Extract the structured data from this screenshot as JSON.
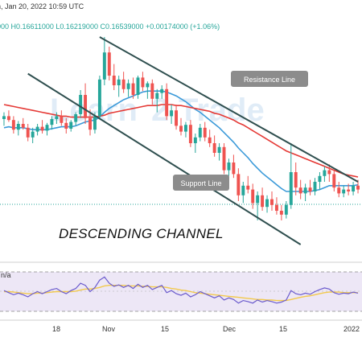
{
  "header": {
    "date": "n, Jan 20, 2022 10:59 UTC",
    "ohlc": "000  H0.16611000  L0.16219000  C0.16539000  +0.00174000 (+1.06%)"
  },
  "watermark": {
    "left": "Learn",
    "mid": "2",
    "right": "Trade"
  },
  "annotations": {
    "resistance": "Resistance Line",
    "support": "Support Line",
    "title": "DESCENDING CHANNEL"
  },
  "rsi": {
    "label": "n/a"
  },
  "colors": {
    "up": "#26a69a",
    "down": "#ef5350",
    "ma_fast": "#3b9ad9",
    "ma_slow": "#e53935",
    "rsi_line": "#6a5acd",
    "rsi_signal": "#f2c94c",
    "channel": "#2f4f4f",
    "annot_bg": "#8c8c8c",
    "rsi_band": "#ede7f6"
  },
  "chart_data": {
    "type": "line",
    "title": "",
    "x_ticks": [
      "18",
      "Nov",
      "15",
      "Dec",
      "15",
      "2022"
    ],
    "ylim": [
      0.11,
      0.345
    ],
    "candles": [
      [
        0.255,
        0.262,
        0.248,
        0.258
      ],
      [
        0.258,
        0.264,
        0.252,
        0.254
      ],
      [
        0.254,
        0.258,
        0.24,
        0.244
      ],
      [
        0.244,
        0.253,
        0.238,
        0.25
      ],
      [
        0.25,
        0.256,
        0.244,
        0.246
      ],
      [
        0.246,
        0.25,
        0.232,
        0.236
      ],
      [
        0.236,
        0.246,
        0.23,
        0.242
      ],
      [
        0.242,
        0.25,
        0.238,
        0.247
      ],
      [
        0.247,
        0.254,
        0.24,
        0.243
      ],
      [
        0.243,
        0.251,
        0.238,
        0.249
      ],
      [
        0.249,
        0.258,
        0.244,
        0.255
      ],
      [
        0.255,
        0.262,
        0.25,
        0.258
      ],
      [
        0.258,
        0.264,
        0.248,
        0.251
      ],
      [
        0.251,
        0.256,
        0.24,
        0.245
      ],
      [
        0.245,
        0.254,
        0.242,
        0.252
      ],
      [
        0.252,
        0.262,
        0.248,
        0.26
      ],
      [
        0.26,
        0.285,
        0.256,
        0.28
      ],
      [
        0.28,
        0.292,
        0.25,
        0.256
      ],
      [
        0.256,
        0.265,
        0.238,
        0.244
      ],
      [
        0.244,
        0.262,
        0.24,
        0.258
      ],
      [
        0.258,
        0.3,
        0.255,
        0.296
      ],
      [
        0.296,
        0.34,
        0.29,
        0.324
      ],
      [
        0.324,
        0.33,
        0.295,
        0.3
      ],
      [
        0.3,
        0.312,
        0.285,
        0.29
      ],
      [
        0.29,
        0.3,
        0.278,
        0.296
      ],
      [
        0.296,
        0.304,
        0.282,
        0.286
      ],
      [
        0.286,
        0.296,
        0.278,
        0.292
      ],
      [
        0.292,
        0.298,
        0.276,
        0.28
      ],
      [
        0.28,
        0.3,
        0.276,
        0.298
      ],
      [
        0.298,
        0.304,
        0.284,
        0.288
      ],
      [
        0.288,
        0.294,
        0.276,
        0.292
      ],
      [
        0.292,
        0.296,
        0.27,
        0.276
      ],
      [
        0.276,
        0.286,
        0.262,
        0.282
      ],
      [
        0.282,
        0.29,
        0.276,
        0.286
      ],
      [
        0.286,
        0.292,
        0.254,
        0.258
      ],
      [
        0.258,
        0.27,
        0.25,
        0.264
      ],
      [
        0.264,
        0.27,
        0.244,
        0.248
      ],
      [
        0.248,
        0.256,
        0.238,
        0.242
      ],
      [
        0.242,
        0.252,
        0.236,
        0.249
      ],
      [
        0.249,
        0.254,
        0.226,
        0.23
      ],
      [
        0.23,
        0.24,
        0.22,
        0.236
      ],
      [
        0.236,
        0.25,
        0.232,
        0.246
      ],
      [
        0.246,
        0.252,
        0.232,
        0.236
      ],
      [
        0.236,
        0.244,
        0.226,
        0.23
      ],
      [
        0.23,
        0.238,
        0.216,
        0.22
      ],
      [
        0.22,
        0.23,
        0.212,
        0.226
      ],
      [
        0.226,
        0.23,
        0.198,
        0.202
      ],
      [
        0.202,
        0.214,
        0.196,
        0.21
      ],
      [
        0.21,
        0.218,
        0.194,
        0.198
      ],
      [
        0.198,
        0.204,
        0.17,
        0.176
      ],
      [
        0.176,
        0.19,
        0.168,
        0.186
      ],
      [
        0.186,
        0.196,
        0.178,
        0.182
      ],
      [
        0.182,
        0.188,
        0.162,
        0.168
      ],
      [
        0.168,
        0.18,
        0.15,
        0.176
      ],
      [
        0.176,
        0.184,
        0.16,
        0.164
      ],
      [
        0.164,
        0.176,
        0.158,
        0.172
      ],
      [
        0.172,
        0.18,
        0.16,
        0.166
      ],
      [
        0.166,
        0.174,
        0.156,
        0.16
      ],
      [
        0.16,
        0.166,
        0.15,
        0.156
      ],
      [
        0.156,
        0.17,
        0.152,
        0.166
      ],
      [
        0.166,
        0.23,
        0.162,
        0.2
      ],
      [
        0.2,
        0.21,
        0.176,
        0.184
      ],
      [
        0.184,
        0.192,
        0.172,
        0.178
      ],
      [
        0.178,
        0.188,
        0.17,
        0.184
      ],
      [
        0.184,
        0.192,
        0.176,
        0.18
      ],
      [
        0.18,
        0.194,
        0.176,
        0.19
      ],
      [
        0.19,
        0.2,
        0.182,
        0.196
      ],
      [
        0.196,
        0.206,
        0.19,
        0.202
      ],
      [
        0.202,
        0.208,
        0.19,
        0.198
      ],
      [
        0.198,
        0.202,
        0.18,
        0.184
      ],
      [
        0.184,
        0.19,
        0.174,
        0.178
      ],
      [
        0.178,
        0.186,
        0.174,
        0.182
      ],
      [
        0.182,
        0.188,
        0.176,
        0.18
      ],
      [
        0.18,
        0.19,
        0.176,
        0.186
      ],
      [
        0.186,
        0.192,
        0.178,
        0.182
      ]
    ],
    "series": [
      {
        "values": [
          0.246,
          0.247,
          0.246,
          0.246,
          0.246,
          0.245,
          0.244,
          0.244,
          0.244,
          0.244,
          0.245,
          0.246,
          0.247,
          0.247,
          0.247,
          0.248,
          0.25,
          0.252,
          0.253,
          0.254,
          0.257,
          0.262,
          0.266,
          0.269,
          0.272,
          0.275,
          0.277,
          0.279,
          0.281,
          0.283,
          0.284,
          0.284,
          0.284,
          0.284,
          0.283,
          0.281,
          0.279,
          0.276,
          0.273,
          0.269,
          0.265,
          0.262,
          0.258,
          0.254,
          0.25,
          0.246,
          0.241,
          0.236,
          0.231,
          0.225,
          0.22,
          0.215,
          0.209,
          0.204,
          0.199,
          0.195,
          0.191,
          0.187,
          0.183,
          0.18,
          0.18,
          0.18,
          0.18,
          0.18,
          0.18,
          0.181,
          0.182,
          0.184,
          0.186,
          0.186,
          0.186,
          0.186,
          0.186,
          0.186,
          0.187
        ]
      },
      {
        "values": [
          0.27,
          0.269,
          0.268,
          0.267,
          0.266,
          0.265,
          0.264,
          0.263,
          0.262,
          0.261,
          0.26,
          0.259,
          0.258,
          0.258,
          0.257,
          0.257,
          0.257,
          0.257,
          0.257,
          0.257,
          0.258,
          0.259,
          0.261,
          0.262,
          0.263,
          0.264,
          0.265,
          0.266,
          0.267,
          0.268,
          0.269,
          0.269,
          0.269,
          0.27,
          0.27,
          0.27,
          0.269,
          0.269,
          0.268,
          0.267,
          0.266,
          0.265,
          0.264,
          0.263,
          0.261,
          0.26,
          0.258,
          0.256,
          0.254,
          0.251,
          0.249,
          0.246,
          0.243,
          0.24,
          0.237,
          0.234,
          0.231,
          0.228,
          0.225,
          0.222,
          0.22,
          0.218,
          0.216,
          0.214,
          0.212,
          0.21,
          0.208,
          0.206,
          0.204,
          0.202,
          0.2,
          0.198,
          0.197,
          0.196,
          0.195
        ]
      }
    ],
    "rsi": {
      "ylim": [
        0,
        100
      ],
      "upper": 70,
      "lower": 30,
      "values": [
        52,
        48,
        44,
        47,
        44,
        40,
        46,
        50,
        46,
        50,
        54,
        56,
        50,
        46,
        52,
        56,
        66,
        62,
        50,
        58,
        72,
        78,
        66,
        60,
        63,
        58,
        62,
        56,
        64,
        58,
        62,
        54,
        58,
        62,
        48,
        52,
        46,
        43,
        47,
        40,
        44,
        50,
        46,
        42,
        38,
        42,
        34,
        38,
        35,
        28,
        33,
        31,
        28,
        34,
        30,
        33,
        31,
        28,
        30,
        34,
        52,
        46,
        44,
        47,
        45,
        50,
        54,
        57,
        55,
        48,
        45,
        47,
        46,
        49,
        47
      ],
      "signal": [
        50,
        50,
        49,
        48,
        47,
        46,
        46,
        47,
        47,
        48,
        49,
        50,
        50,
        50,
        50,
        51,
        53,
        55,
        55,
        56,
        58,
        61,
        62,
        62,
        62,
        62,
        61,
        61,
        61,
        60,
        60,
        59,
        59,
        59,
        58,
        56,
        55,
        53,
        52,
        50,
        48,
        47,
        46,
        45,
        44,
        43,
        42,
        41,
        40,
        39,
        38,
        37,
        36,
        35,
        35,
        34,
        34,
        33,
        33,
        33,
        35,
        37,
        39,
        41,
        42,
        44,
        46,
        48,
        49,
        49,
        49,
        48,
        48,
        48,
        48
      ]
    },
    "channel_lines": [
      {
        "label": "Resistance Line",
        "points": [
          [
            20,
            0.34
          ],
          [
            74,
            0.19
          ]
        ]
      },
      {
        "label": "Support Line",
        "points": [
          [
            5,
            0.302
          ],
          [
            62,
            0.125
          ]
        ]
      }
    ]
  }
}
